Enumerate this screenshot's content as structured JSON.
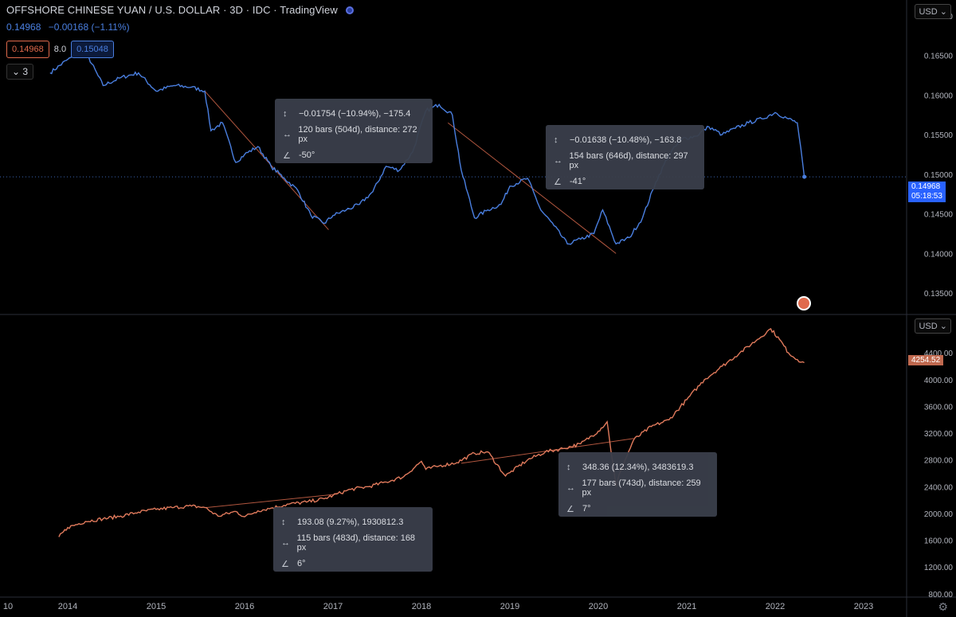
{
  "header": {
    "title": "OFFSHORE CHINESE YUAN / U.S. DOLLAR · 3D · IDC · TradingView",
    "quote_price": "0.14968",
    "quote_change": "−0.00168 (−1.11%)",
    "bid": "0.14968",
    "spread": "8.0",
    "ask": "0.15048",
    "collapse_count": "3"
  },
  "currency_top": "USD",
  "currency_bottom": "USD",
  "top_price_tag": "0.14968",
  "top_countdown": "05:18:53",
  "bottom_price_tag": "4254.52",
  "tooltips": [
    {
      "delta": "−0.01754 (−10.94%), −175.4",
      "bars": "120 bars (504d), distance: 272 px",
      "angle": "-50°"
    },
    {
      "delta": "−0.01638 (−10.48%), −163.8",
      "bars": "154 bars (646d), distance: 297 px",
      "angle": "-41°"
    },
    {
      "delta": "193.08 (9.27%), 1930812.3",
      "bars": "115 bars (483d), distance: 168 px",
      "angle": "6°"
    },
    {
      "delta": "348.36 (12.34%), 3483619.3",
      "bars": "177 bars (743d), distance: 259 px",
      "angle": "7°"
    }
  ],
  "colors": {
    "cnh": "#4a7fe0",
    "spx": "#e07a5c",
    "background": "#000000",
    "tooltip": "#3a3f4b"
  },
  "chart_data": [
    {
      "type": "line",
      "title": "OFFSHORE CHINESE YUAN / U.S. DOLLAR",
      "x": [
        2013.8,
        2014.0,
        2014.2,
        2014.4,
        2014.6,
        2014.8,
        2015.0,
        2015.2,
        2015.4,
        2015.55,
        2015.62,
        2015.75,
        2015.9,
        2016.0,
        2016.15,
        2016.3,
        2016.45,
        2016.6,
        2016.75,
        2016.9,
        2017.0,
        2017.15,
        2017.3,
        2017.45,
        2017.6,
        2017.75,
        2017.9,
        2018.05,
        2018.2,
        2018.35,
        2018.45,
        2018.6,
        2018.75,
        2018.9,
        2019.0,
        2019.2,
        2019.35,
        2019.5,
        2019.65,
        2019.8,
        2019.95,
        2020.05,
        2020.2,
        2020.35,
        2020.5,
        2020.65,
        2020.8,
        2020.95,
        2021.1,
        2021.25,
        2021.4,
        2021.55,
        2021.7,
        2021.85,
        2022.0,
        2022.15,
        2022.25,
        2022.33
      ],
      "values": [
        0.1628,
        0.1645,
        0.1655,
        0.1612,
        0.1622,
        0.1628,
        0.1605,
        0.1612,
        0.161,
        0.1605,
        0.1555,
        0.1565,
        0.1515,
        0.1525,
        0.1535,
        0.151,
        0.1495,
        0.148,
        0.1448,
        0.1438,
        0.1448,
        0.1455,
        0.1462,
        0.1478,
        0.151,
        0.1505,
        0.1528,
        0.158,
        0.1588,
        0.1575,
        0.1505,
        0.1445,
        0.1455,
        0.1462,
        0.1485,
        0.1495,
        0.1455,
        0.1435,
        0.1412,
        0.1418,
        0.1425,
        0.1455,
        0.1412,
        0.142,
        0.1445,
        0.149,
        0.1525,
        0.1545,
        0.1548,
        0.156,
        0.155,
        0.1558,
        0.1565,
        0.157,
        0.1578,
        0.157,
        0.1565,
        0.14968
      ],
      "ylim": [
        0.1325,
        0.172
      ],
      "y_ticks": [
        "0.17000",
        "0.16500",
        "0.16000",
        "0.15500",
        "0.15000",
        "0.14500",
        "0.14000",
        "0.13500"
      ],
      "trendlines": [
        {
          "x": [
            2015.55,
            2016.95
          ],
          "y": [
            0.1605,
            0.143
          ]
        },
        {
          "x": [
            2018.3,
            2020.2
          ],
          "y": [
            0.1565,
            0.14
          ]
        }
      ]
    },
    {
      "type": "line",
      "x": [
        2013.9,
        2014.0,
        2014.2,
        2014.4,
        2014.6,
        2014.8,
        2015.0,
        2015.2,
        2015.4,
        2015.55,
        2015.7,
        2015.9,
        2016.0,
        2016.15,
        2016.3,
        2016.5,
        2016.7,
        2016.9,
        2017.0,
        2017.2,
        2017.4,
        2017.6,
        2017.8,
        2018.0,
        2018.05,
        2018.2,
        2018.4,
        2018.6,
        2018.75,
        2018.95,
        2019.0,
        2019.2,
        2019.4,
        2019.6,
        2019.8,
        2020.0,
        2020.1,
        2020.2,
        2020.25,
        2020.4,
        2020.6,
        2020.8,
        2021.0,
        2021.2,
        2021.4,
        2021.6,
        2021.8,
        2021.95,
        2022.05,
        2022.15,
        2022.25,
        2022.33
      ],
      "values": [
        1650,
        1790,
        1880,
        1920,
        1960,
        2020,
        2060,
        2090,
        2110,
        2090,
        1960,
        2030,
        1950,
        2040,
        2080,
        2140,
        2170,
        2220,
        2270,
        2360,
        2400,
        2470,
        2550,
        2780,
        2660,
        2710,
        2760,
        2900,
        2920,
        2560,
        2610,
        2800,
        2920,
        2970,
        3040,
        3230,
        3370,
        2400,
        2630,
        3100,
        3300,
        3400,
        3700,
        4000,
        4200,
        4400,
        4600,
        4760,
        4600,
        4400,
        4300,
        4254.52
      ],
      "ylim": [
        750,
        4950
      ],
      "y_ticks": [
        "4400.00",
        "4000.00",
        "3600.00",
        "3200.00",
        "2800.00",
        "2400.00",
        "2000.00",
        "1600.00",
        "1200.00",
        "800.00"
      ],
      "trendlines": [
        {
          "x": [
            2015.55,
            2017.05
          ],
          "y": [
            2085,
            2290
          ]
        },
        {
          "x": [
            2018.45,
            2020.4
          ],
          "y": [
            2750,
            3120
          ]
        }
      ]
    }
  ],
  "x_axis_labels": [
    "10",
    "2014",
    "2015",
    "2016",
    "2017",
    "2018",
    "2019",
    "2020",
    "2021",
    "2022",
    "2023"
  ]
}
